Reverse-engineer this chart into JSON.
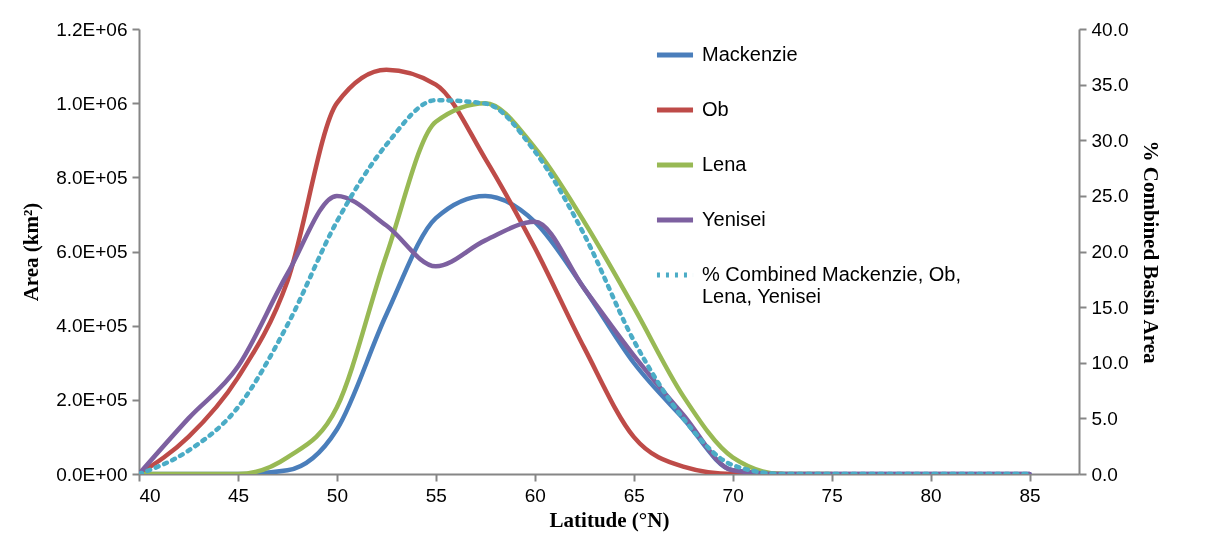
{
  "chart_data": {
    "type": "line",
    "xlabel": "Latitude (°N)",
    "ylabel": "Area (km²)",
    "y2label": "% Combined Basin Area",
    "x": [
      40,
      42.5,
      45,
      47.5,
      50,
      52.5,
      55,
      57.5,
      60,
      62.5,
      65,
      67.5,
      70,
      72.5,
      75,
      77.5,
      80,
      82.5,
      85
    ],
    "series": [
      {
        "name": "Mackenzie",
        "color": "#4a7ebb",
        "values": [
          0,
          0,
          0,
          10000,
          120000,
          430000,
          690000,
          750000,
          680000,
          500000,
          300000,
          150000,
          10000,
          0,
          0,
          0,
          0,
          0,
          0
        ]
      },
      {
        "name": "Ob",
        "color": "#be4b48",
        "values": [
          0,
          100000,
          260000,
          520000,
          1000000,
          1090000,
          1050000,
          850000,
          610000,
          340000,
          100000,
          20000,
          0,
          0,
          null,
          null,
          null,
          null,
          null
        ]
      },
      {
        "name": "Lena",
        "color": "#98b954",
        "values": [
          0,
          0,
          0,
          45000,
          180000,
          590000,
          950000,
          1000000,
          880000,
          680000,
          450000,
          210000,
          45000,
          0,
          0,
          null,
          null,
          null,
          null
        ]
      },
      {
        "name": "Yenisei",
        "color": "#7d60a0",
        "values": [
          0,
          150000,
          290000,
          540000,
          750000,
          670000,
          560000,
          630000,
          680000,
          500000,
          320000,
          160000,
          10000,
          0,
          0,
          0,
          0,
          0,
          0
        ]
      },
      {
        "name": "% Combined Mackenzie, Ob, Lena, Yenisei",
        "color": "#4bacc6",
        "axis": "y2",
        "line_style": "dotted",
        "values": [
          0,
          2.1,
          6.0,
          13.4,
          22.7,
          29.6,
          33.6,
          33.3,
          29.0,
          21.5,
          12.0,
          5.0,
          0.8,
          0,
          0,
          0,
          0,
          0,
          0
        ]
      }
    ],
    "xlim": [
      40,
      87.5
    ],
    "xticks": [
      40,
      45,
      50,
      55,
      60,
      65,
      70,
      75,
      80,
      85
    ],
    "ylim": [
      0,
      1200000
    ],
    "yticks": [
      {
        "value": 0,
        "label": "0.0E+00"
      },
      {
        "value": 200000,
        "label": "2.0E+05"
      },
      {
        "value": 400000,
        "label": "4.0E+05"
      },
      {
        "value": 600000,
        "label": "6.0E+05"
      },
      {
        "value": 800000,
        "label": "8.0E+05"
      },
      {
        "value": 1000000,
        "label": "1.0E+06"
      },
      {
        "value": 1200000,
        "label": "1.2E+06"
      }
    ],
    "y2lim": [
      0,
      40
    ],
    "y2ticks": [
      {
        "value": 0,
        "label": "0.0"
      },
      {
        "value": 5,
        "label": "5.0"
      },
      {
        "value": 10,
        "label": "10.0"
      },
      {
        "value": 15,
        "label": "15.0"
      },
      {
        "value": 20,
        "label": "20.0"
      },
      {
        "value": 25,
        "label": "25.0"
      },
      {
        "value": 30,
        "label": "30.0"
      },
      {
        "value": 35,
        "label": "35.0"
      },
      {
        "value": 40,
        "label": "40.0"
      }
    ],
    "grid": false,
    "legend": "top right",
    "marker": "none",
    "line_style": "solid"
  }
}
